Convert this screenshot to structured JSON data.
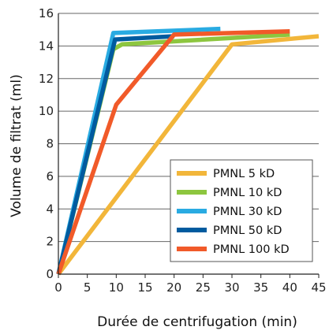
{
  "chart_data": {
    "type": "line",
    "title": "",
    "xlabel": "Durée de centrifugation (min)",
    "ylabel": "Volume de filtrat (ml)",
    "xlim": [
      0,
      45
    ],
    "ylim": [
      0,
      16
    ],
    "xticks": [
      0,
      5,
      10,
      15,
      20,
      25,
      30,
      35,
      40,
      45
    ],
    "yticks": [
      0,
      2,
      4,
      6,
      8,
      10,
      12,
      14,
      16
    ],
    "grid": "horizontal",
    "legend_position": "bottom-right",
    "series": [
      {
        "name": "PMNL 5 kD",
        "color": "#F2B63A",
        "x": [
          0,
          30,
          45
        ],
        "y": [
          0,
          14.1,
          14.6
        ]
      },
      {
        "name": "PMNL 10 kD",
        "color": "#8DC63F",
        "x": [
          0,
          9.5,
          11,
          40
        ],
        "y": [
          0,
          13.8,
          14.1,
          14.7
        ]
      },
      {
        "name": "PMNL 30 kD",
        "color": "#29ABE2",
        "x": [
          0,
          9.5,
          28
        ],
        "y": [
          0,
          14.8,
          15.05
        ]
      },
      {
        "name": "PMNL 50 kD",
        "color": "#005B9F",
        "x": [
          0,
          9.8,
          20
        ],
        "y": [
          0,
          14.4,
          14.6
        ]
      },
      {
        "name": "PMNL 100 kD",
        "color": "#F15A29",
        "x": [
          0,
          10,
          20,
          40
        ],
        "y": [
          0,
          10.4,
          14.7,
          14.9
        ]
      }
    ]
  }
}
